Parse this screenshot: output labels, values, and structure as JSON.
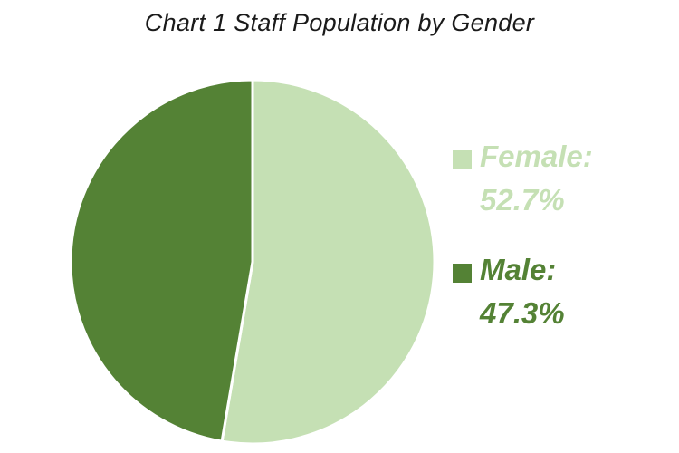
{
  "chart_data": {
    "type": "pie",
    "title": "Chart 1 Staff Population by Gender",
    "slices": [
      {
        "label": "Female:",
        "value": 52.7,
        "value_label": "52.7%",
        "color": "#c5e0b4"
      },
      {
        "label": "Male:",
        "value": 47.3,
        "value_label": "47.3%",
        "color": "#548235"
      }
    ],
    "legend_position": "right",
    "separator_color": "#ffffff"
  }
}
